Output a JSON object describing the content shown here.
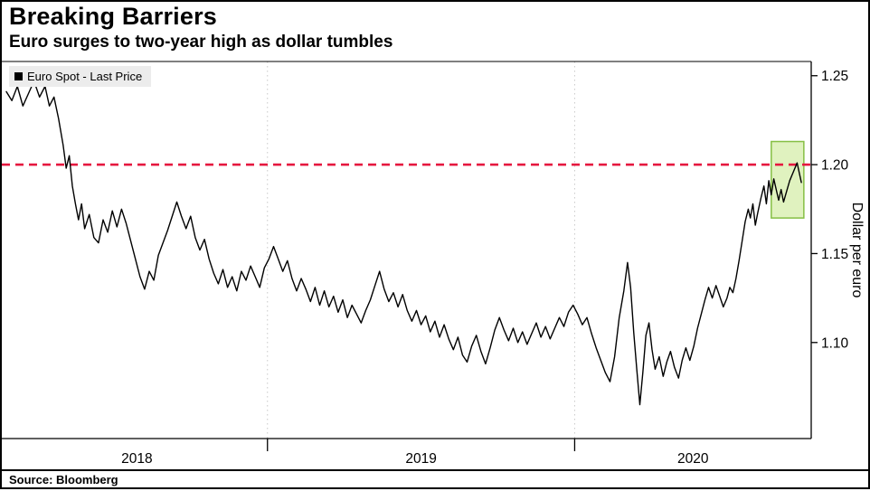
{
  "chart_data": {
    "type": "line",
    "title": "Breaking Barriers",
    "subtitle": "Euro surges to two-year high as dollar tumbles",
    "source": "Source: Bloomberg",
    "ylabel": "Dollar per euro",
    "legend": [
      {
        "label": "Euro Spot - Last Price",
        "marker_color": "#000000"
      }
    ],
    "xlim": [
      2018.15,
      2020.77
    ],
    "ylim": [
      1.046,
      1.258
    ],
    "y_ticks": [
      1.1,
      1.15,
      1.2,
      1.25
    ],
    "x_tick_labels": [
      "2018",
      "2019",
      "2020"
    ],
    "year_boundaries": [
      2019,
      2020
    ],
    "grid": {
      "vertical_dotted": true,
      "color": "#c9c9c9"
    },
    "reference_line": {
      "value": 1.2,
      "color": "#e5173f",
      "style": "dashed"
    },
    "highlight_box": {
      "x0": 2020.64,
      "x1": 2020.746,
      "y0": 1.17,
      "y1": 1.213,
      "fill": "#d6edaa",
      "stroke": "#86bf44",
      "opacity": 0.75
    },
    "series": [
      {
        "name": "Euro Spot - Last Price",
        "color": "#000000",
        "points": [
          [
            2018.15,
            1.241
          ],
          [
            2018.168,
            1.236
          ],
          [
            2018.186,
            1.244
          ],
          [
            2018.204,
            1.233
          ],
          [
            2018.222,
            1.24
          ],
          [
            2018.24,
            1.247
          ],
          [
            2018.258,
            1.238
          ],
          [
            2018.276,
            1.244
          ],
          [
            2018.29,
            1.233
          ],
          [
            2018.305,
            1.238
          ],
          [
            2018.32,
            1.226
          ],
          [
            2018.335,
            1.211
          ],
          [
            2018.345,
            1.198
          ],
          [
            2018.355,
            1.205
          ],
          [
            2018.365,
            1.188
          ],
          [
            2018.375,
            1.178
          ],
          [
            2018.385,
            1.169
          ],
          [
            2018.395,
            1.178
          ],
          [
            2018.405,
            1.164
          ],
          [
            2018.42,
            1.172
          ],
          [
            2018.435,
            1.159
          ],
          [
            2018.45,
            1.156
          ],
          [
            2018.465,
            1.169
          ],
          [
            2018.48,
            1.162
          ],
          [
            2018.495,
            1.174
          ],
          [
            2018.51,
            1.165
          ],
          [
            2018.525,
            1.175
          ],
          [
            2018.54,
            1.167
          ],
          [
            2018.555,
            1.157
          ],
          [
            2018.57,
            1.147
          ],
          [
            2018.585,
            1.137
          ],
          [
            2018.6,
            1.13
          ],
          [
            2018.615,
            1.14
          ],
          [
            2018.63,
            1.135
          ],
          [
            2018.645,
            1.149
          ],
          [
            2018.66,
            1.156
          ],
          [
            2018.675,
            1.163
          ],
          [
            2018.69,
            1.171
          ],
          [
            2018.705,
            1.179
          ],
          [
            2018.72,
            1.171
          ],
          [
            2018.735,
            1.164
          ],
          [
            2018.75,
            1.171
          ],
          [
            2018.765,
            1.159
          ],
          [
            2018.78,
            1.152
          ],
          [
            2018.795,
            1.158
          ],
          [
            2018.81,
            1.147
          ],
          [
            2018.825,
            1.139
          ],
          [
            2018.84,
            1.133
          ],
          [
            2018.855,
            1.141
          ],
          [
            2018.87,
            1.131
          ],
          [
            2018.885,
            1.137
          ],
          [
            2018.9,
            1.129
          ],
          [
            2018.915,
            1.14
          ],
          [
            2018.93,
            1.135
          ],
          [
            2018.945,
            1.143
          ],
          [
            2018.96,
            1.137
          ],
          [
            2018.975,
            1.131
          ],
          [
            2018.99,
            1.142
          ],
          [
            2019.005,
            1.147
          ],
          [
            2019.02,
            1.154
          ],
          [
            2019.035,
            1.147
          ],
          [
            2019.05,
            1.14
          ],
          [
            2019.065,
            1.146
          ],
          [
            2019.08,
            1.136
          ],
          [
            2019.095,
            1.129
          ],
          [
            2019.11,
            1.136
          ],
          [
            2019.125,
            1.13
          ],
          [
            2019.14,
            1.123
          ],
          [
            2019.155,
            1.131
          ],
          [
            2019.17,
            1.121
          ],
          [
            2019.185,
            1.129
          ],
          [
            2019.2,
            1.12
          ],
          [
            2019.215,
            1.126
          ],
          [
            2019.23,
            1.117
          ],
          [
            2019.245,
            1.124
          ],
          [
            2019.26,
            1.114
          ],
          [
            2019.275,
            1.121
          ],
          [
            2019.29,
            1.116
          ],
          [
            2019.305,
            1.111
          ],
          [
            2019.32,
            1.118
          ],
          [
            2019.335,
            1.124
          ],
          [
            2019.35,
            1.132
          ],
          [
            2019.365,
            1.14
          ],
          [
            2019.38,
            1.13
          ],
          [
            2019.395,
            1.123
          ],
          [
            2019.41,
            1.128
          ],
          [
            2019.425,
            1.12
          ],
          [
            2019.44,
            1.127
          ],
          [
            2019.455,
            1.118
          ],
          [
            2019.47,
            1.112
          ],
          [
            2019.485,
            1.118
          ],
          [
            2019.5,
            1.11
          ],
          [
            2019.515,
            1.115
          ],
          [
            2019.53,
            1.106
          ],
          [
            2019.545,
            1.112
          ],
          [
            2019.56,
            1.103
          ],
          [
            2019.575,
            1.11
          ],
          [
            2019.59,
            1.102
          ],
          [
            2019.605,
            1.096
          ],
          [
            2019.62,
            1.103
          ],
          [
            2019.635,
            1.093
          ],
          [
            2019.65,
            1.089
          ],
          [
            2019.665,
            1.098
          ],
          [
            2019.68,
            1.104
          ],
          [
            2019.695,
            1.095
          ],
          [
            2019.71,
            1.088
          ],
          [
            2019.725,
            1.097
          ],
          [
            2019.74,
            1.107
          ],
          [
            2019.755,
            1.114
          ],
          [
            2019.77,
            1.107
          ],
          [
            2019.785,
            1.101
          ],
          [
            2019.8,
            1.108
          ],
          [
            2019.815,
            1.1
          ],
          [
            2019.83,
            1.106
          ],
          [
            2019.845,
            1.099
          ],
          [
            2019.86,
            1.105
          ],
          [
            2019.875,
            1.111
          ],
          [
            2019.89,
            1.103
          ],
          [
            2019.905,
            1.109
          ],
          [
            2019.92,
            1.102
          ],
          [
            2019.935,
            1.108
          ],
          [
            2019.95,
            1.114
          ],
          [
            2019.965,
            1.109
          ],
          [
            2019.98,
            1.117
          ],
          [
            2019.995,
            1.121
          ],
          [
            2020.01,
            1.116
          ],
          [
            2020.025,
            1.11
          ],
          [
            2020.04,
            1.114
          ],
          [
            2020.055,
            1.105
          ],
          [
            2020.07,
            1.097
          ],
          [
            2020.085,
            1.09
          ],
          [
            2020.1,
            1.083
          ],
          [
            2020.115,
            1.078
          ],
          [
            2020.13,
            1.092
          ],
          [
            2020.145,
            1.114
          ],
          [
            2020.16,
            1.129
          ],
          [
            2020.172,
            1.145
          ],
          [
            2020.182,
            1.131
          ],
          [
            2020.192,
            1.106
          ],
          [
            2020.202,
            1.085
          ],
          [
            2020.212,
            1.065
          ],
          [
            2020.222,
            1.083
          ],
          [
            2020.232,
            1.104
          ],
          [
            2020.242,
            1.111
          ],
          [
            2020.252,
            1.096
          ],
          [
            2020.262,
            1.085
          ],
          [
            2020.275,
            1.092
          ],
          [
            2020.288,
            1.081
          ],
          [
            2020.3,
            1.089
          ],
          [
            2020.312,
            1.095
          ],
          [
            2020.325,
            1.086
          ],
          [
            2020.338,
            1.08
          ],
          [
            2020.35,
            1.09
          ],
          [
            2020.362,
            1.097
          ],
          [
            2020.375,
            1.09
          ],
          [
            2020.388,
            1.098
          ],
          [
            2020.4,
            1.108
          ],
          [
            2020.412,
            1.116
          ],
          [
            2020.424,
            1.124
          ],
          [
            2020.436,
            1.131
          ],
          [
            2020.448,
            1.125
          ],
          [
            2020.46,
            1.132
          ],
          [
            2020.472,
            1.126
          ],
          [
            2020.484,
            1.12
          ],
          [
            2020.496,
            1.125
          ],
          [
            2020.505,
            1.131
          ],
          [
            2020.515,
            1.128
          ],
          [
            2020.525,
            1.136
          ],
          [
            2020.535,
            1.146
          ],
          [
            2020.545,
            1.157
          ],
          [
            2020.555,
            1.168
          ],
          [
            2020.565,
            1.175
          ],
          [
            2020.572,
            1.17
          ],
          [
            2020.58,
            1.178
          ],
          [
            2020.588,
            1.166
          ],
          [
            2020.596,
            1.173
          ],
          [
            2020.606,
            1.181
          ],
          [
            2020.616,
            1.188
          ],
          [
            2020.624,
            1.178
          ],
          [
            2020.632,
            1.191
          ],
          [
            2020.64,
            1.183
          ],
          [
            2020.648,
            1.192
          ],
          [
            2020.656,
            1.186
          ],
          [
            2020.664,
            1.18
          ],
          [
            2020.672,
            1.186
          ],
          [
            2020.68,
            1.179
          ],
          [
            2020.69,
            1.185
          ],
          [
            2020.7,
            1.191
          ],
          [
            2020.712,
            1.196
          ],
          [
            2020.724,
            1.201
          ],
          [
            2020.738,
            1.19
          ]
        ]
      }
    ]
  },
  "colors": {
    "line": "#000000",
    "reference": "#e5173f",
    "highlight_fill": "#d6edaa",
    "highlight_stroke": "#86bf44",
    "legend_bg": "#ececec",
    "grid": "#c9c9c9"
  }
}
